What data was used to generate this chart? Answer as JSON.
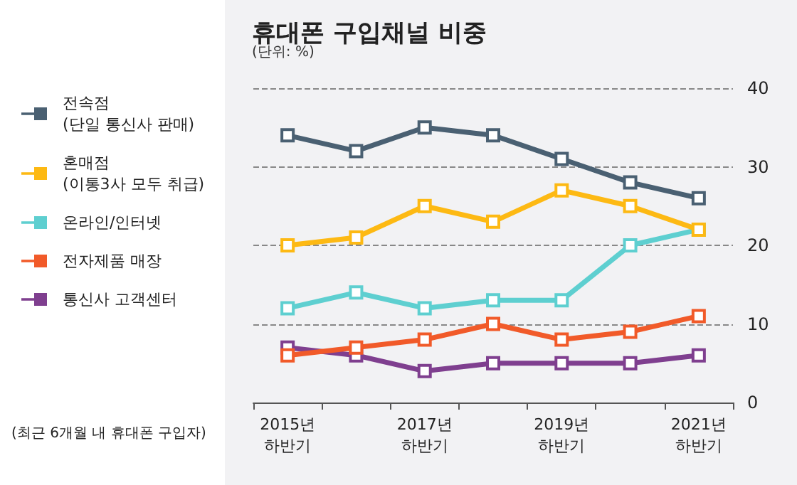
{
  "chart_data": {
    "type": "line",
    "title": "휴대폰 구입채널 비중",
    "subtitle": "(단위: %)",
    "categories": [
      "2015년\n하반기",
      null,
      "2017년\n하반기",
      null,
      "2019년\n하반기",
      null,
      "2021년\n하반기"
    ],
    "series": [
      {
        "name": "전속점\n(단일 통신사 판매)",
        "color": "#4a6072",
        "values": [
          34,
          32,
          35,
          34,
          31,
          28,
          26
        ]
      },
      {
        "name": "혼매점\n(이통3사 모두 취급)",
        "color": "#fdb913",
        "values": [
          20,
          21,
          25,
          23,
          27,
          25,
          22
        ]
      },
      {
        "name": "온라인/인터넷",
        "color": "#5ecfd0",
        "values": [
          12,
          14,
          12,
          13,
          13,
          20,
          22
        ]
      },
      {
        "name": "전자제품 매장",
        "color": "#f15a29",
        "values": [
          6,
          7,
          8,
          10,
          8,
          9,
          11
        ]
      },
      {
        "name": "통신사 고객센터",
        "color": "#7f3f8f",
        "values": [
          7,
          6,
          4,
          5,
          5,
          5,
          6
        ]
      }
    ],
    "ylim": [
      0,
      40
    ],
    "yticks": [
      0,
      10,
      20,
      30,
      40
    ],
    "grid": "y",
    "legend": "left",
    "marker": "square",
    "line_style": "solid",
    "annotations": [
      "(최근 6개월 내 휴대폰 구입자)"
    ]
  }
}
